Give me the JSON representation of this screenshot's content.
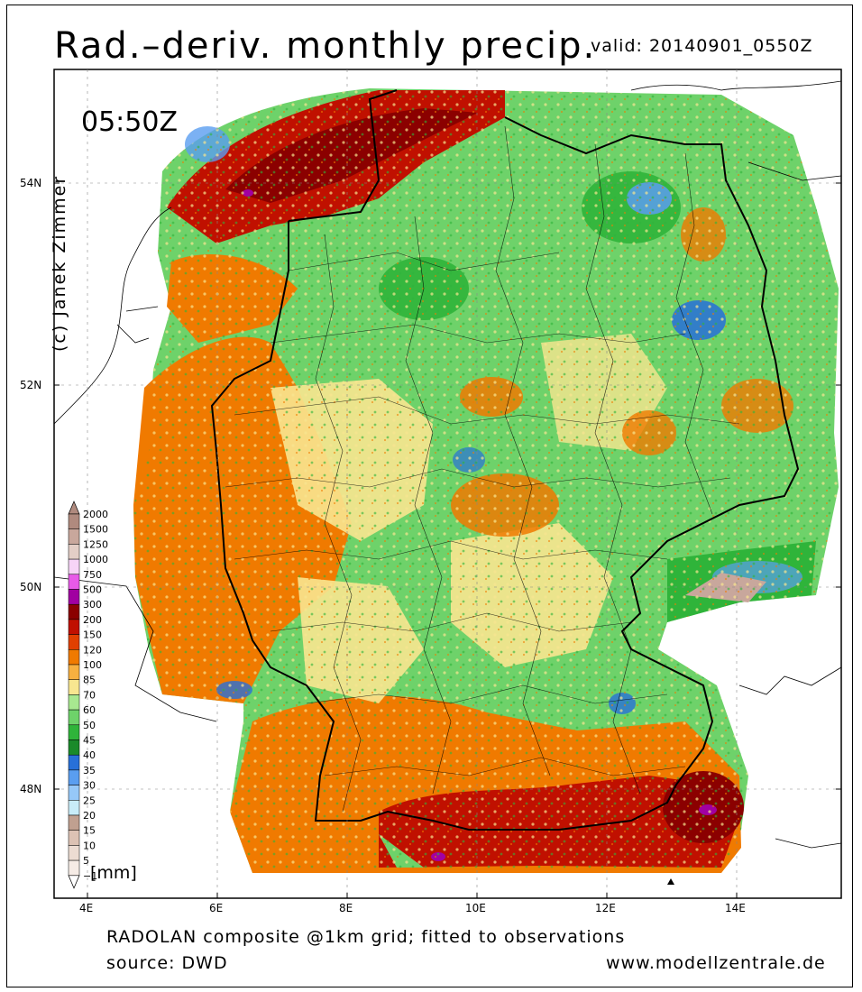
{
  "title": "Rad.–deriv. monthly precip.",
  "valid": "valid: 20140901_0550Z",
  "time_label": "05:50Z",
  "copyright": "(c) Janek Zimmer",
  "footer": {
    "line1": "RADOLAN composite @1km grid; fitted to observations",
    "line2": "source: DWD",
    "website": "www.modellzentrale.de"
  },
  "axes": {
    "lat_labels": [
      "54N",
      "52N",
      "50N",
      "48N"
    ],
    "lon_labels": [
      "4E",
      "6E",
      "8E",
      "10E",
      "12E",
      "14E"
    ]
  },
  "legend": {
    "unit": "[mm]",
    "levels": [
      "2000",
      "1500",
      "1250",
      "1000",
      "750",
      "500",
      "300",
      "200",
      "150",
      "120",
      "100",
      "85",
      "70",
      "60",
      "50",
      "45",
      "40",
      "35",
      "30",
      "25",
      "20",
      "15",
      "10",
      "5",
      "−1"
    ],
    "colors": [
      "#b08a7e",
      "#c8a79c",
      "#e3cec6",
      "#f7d4f7",
      "#e85ae8",
      "#a100a1",
      "#8b0000",
      "#c01000",
      "#e04000",
      "#f07a00",
      "#f7b040",
      "#f8e690",
      "#a8e890",
      "#6ed26a",
      "#2fb43a",
      "#1a8a2a",
      "#2870d8",
      "#5a9ef0",
      "#96c8f8",
      "#c8ecf8",
      "#c0a090",
      "#dcc2b4",
      "#ecdcd2",
      "#f6ece6",
      "#ffffff"
    ]
  },
  "map": {
    "background": "#ffffff",
    "dominant_colors": [
      "#f07a00",
      "#c01000",
      "#6ed26a",
      "#f8e690",
      "#2fb43a",
      "#5a9ef0"
    ]
  }
}
